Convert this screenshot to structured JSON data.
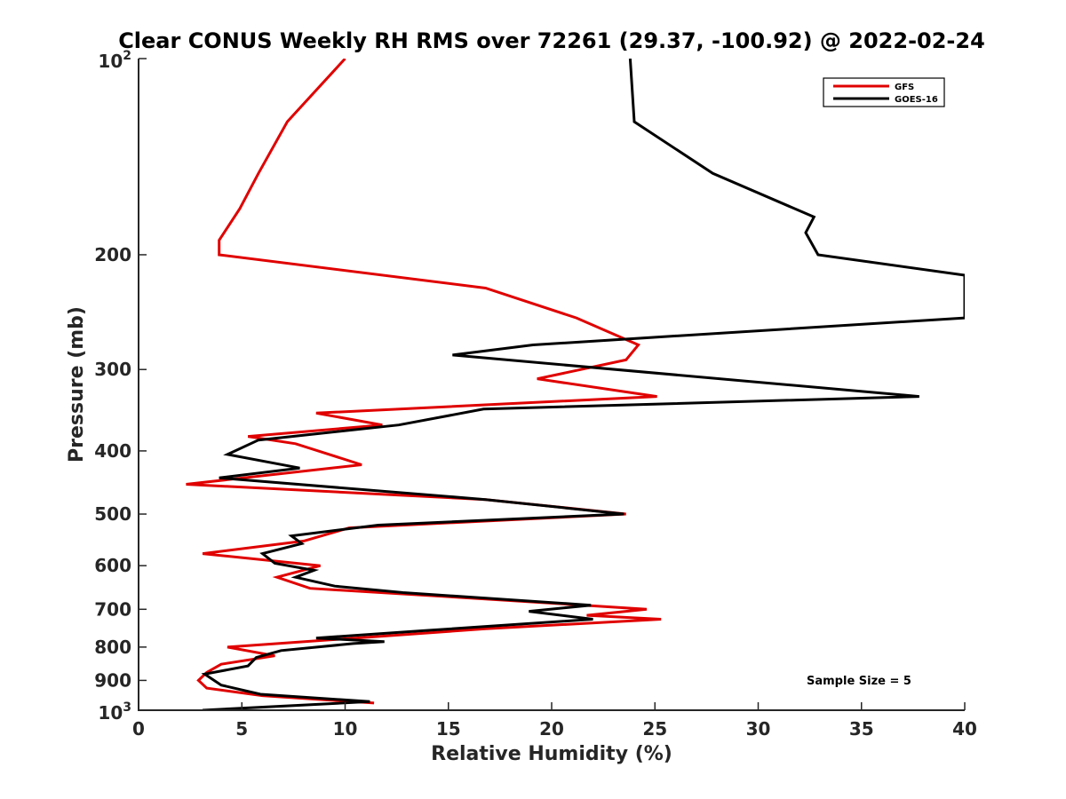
{
  "chart_data": {
    "type": "line",
    "title": "Clear CONUS Weekly RH RMS over 72261 (29.37, -100.92) @ 2022-02-24",
    "xlabel": "Relative Humidity (%)",
    "ylabel": "Pressure (mb)",
    "xlim": [
      0,
      40
    ],
    "ylim": [
      100,
      1000
    ],
    "y_scale": "log",
    "y_reversed": true,
    "x_ticks": [
      "0",
      "5",
      "10",
      "15",
      "20",
      "25",
      "30",
      "35",
      "40"
    ],
    "y_ticks": [
      {
        "value": 100,
        "base": "10",
        "exp": "2"
      },
      {
        "value": 200,
        "label": "200"
      },
      {
        "value": 300,
        "label": "300"
      },
      {
        "value": 400,
        "label": "400"
      },
      {
        "value": 500,
        "label": "500"
      },
      {
        "value": 600,
        "label": "600"
      },
      {
        "value": 700,
        "label": "700"
      },
      {
        "value": 800,
        "label": "800"
      },
      {
        "value": 900,
        "label": "900"
      },
      {
        "value": 1000,
        "base": "10",
        "exp": "3"
      }
    ],
    "legend_position": "top-right",
    "annotation": "Sample Size = 5",
    "grid": false,
    "series": [
      {
        "name": "GFS",
        "color": "#e00000",
        "points": [
          [
            10.0,
            100
          ],
          [
            7.2,
            125
          ],
          [
            5.8,
            150
          ],
          [
            4.9,
            170
          ],
          [
            3.9,
            190
          ],
          [
            3.9,
            200
          ],
          [
            16.8,
            225
          ],
          [
            21.2,
            250
          ],
          [
            24.2,
            275
          ],
          [
            23.6,
            290
          ],
          [
            19.3,
            310
          ],
          [
            25.1,
            330
          ],
          [
            8.6,
            350
          ],
          [
            11.8,
            365
          ],
          [
            5.3,
            380
          ],
          [
            7.6,
            390
          ],
          [
            10.8,
            420
          ],
          [
            2.3,
            450
          ],
          [
            16.8,
            475
          ],
          [
            23.6,
            500
          ],
          [
            10.2,
            525
          ],
          [
            8.0,
            550
          ],
          [
            3.1,
            575
          ],
          [
            8.8,
            600
          ],
          [
            6.7,
            625
          ],
          [
            8.3,
            650
          ],
          [
            16.8,
            675
          ],
          [
            24.6,
            700
          ],
          [
            21.7,
            715
          ],
          [
            25.3,
            725
          ],
          [
            16.8,
            750
          ],
          [
            10.5,
            775
          ],
          [
            4.3,
            800
          ],
          [
            6.6,
            825
          ],
          [
            4.0,
            850
          ],
          [
            3.3,
            875
          ],
          [
            2.9,
            900
          ],
          [
            3.3,
            925
          ],
          [
            6.0,
            950
          ],
          [
            11.4,
            975
          ]
        ]
      },
      {
        "name": "GOES-16",
        "color": "#000000",
        "points": [
          [
            23.8,
            100
          ],
          [
            24.0,
            125
          ],
          [
            27.8,
            150
          ],
          [
            32.7,
            175
          ],
          [
            32.3,
            185
          ],
          [
            32.9,
            200
          ],
          [
            40.0,
            215
          ],
          [
            40.0,
            250
          ],
          [
            19.1,
            275
          ],
          [
            15.2,
            285
          ],
          [
            37.8,
            330
          ],
          [
            16.7,
            345
          ],
          [
            12.6,
            365
          ],
          [
            5.8,
            385
          ],
          [
            4.3,
            405
          ],
          [
            7.8,
            425
          ],
          [
            3.9,
            440
          ],
          [
            16.8,
            475
          ],
          [
            23.5,
            500
          ],
          [
            11.6,
            520
          ],
          [
            7.4,
            540
          ],
          [
            7.9,
            555
          ],
          [
            6.0,
            575
          ],
          [
            6.6,
            595
          ],
          [
            8.5,
            610
          ],
          [
            7.6,
            625
          ],
          [
            9.5,
            645
          ],
          [
            12.8,
            660
          ],
          [
            21.9,
            690
          ],
          [
            18.9,
            705
          ],
          [
            22.0,
            725
          ],
          [
            13.8,
            755
          ],
          [
            8.6,
            775
          ],
          [
            11.9,
            785
          ],
          [
            10.4,
            790
          ],
          [
            6.9,
            810
          ],
          [
            5.7,
            830
          ],
          [
            5.3,
            855
          ],
          [
            3.2,
            880
          ],
          [
            4.0,
            915
          ],
          [
            5.9,
            945
          ],
          [
            11.2,
            970
          ],
          [
            3.1,
            1000
          ]
        ]
      }
    ]
  }
}
